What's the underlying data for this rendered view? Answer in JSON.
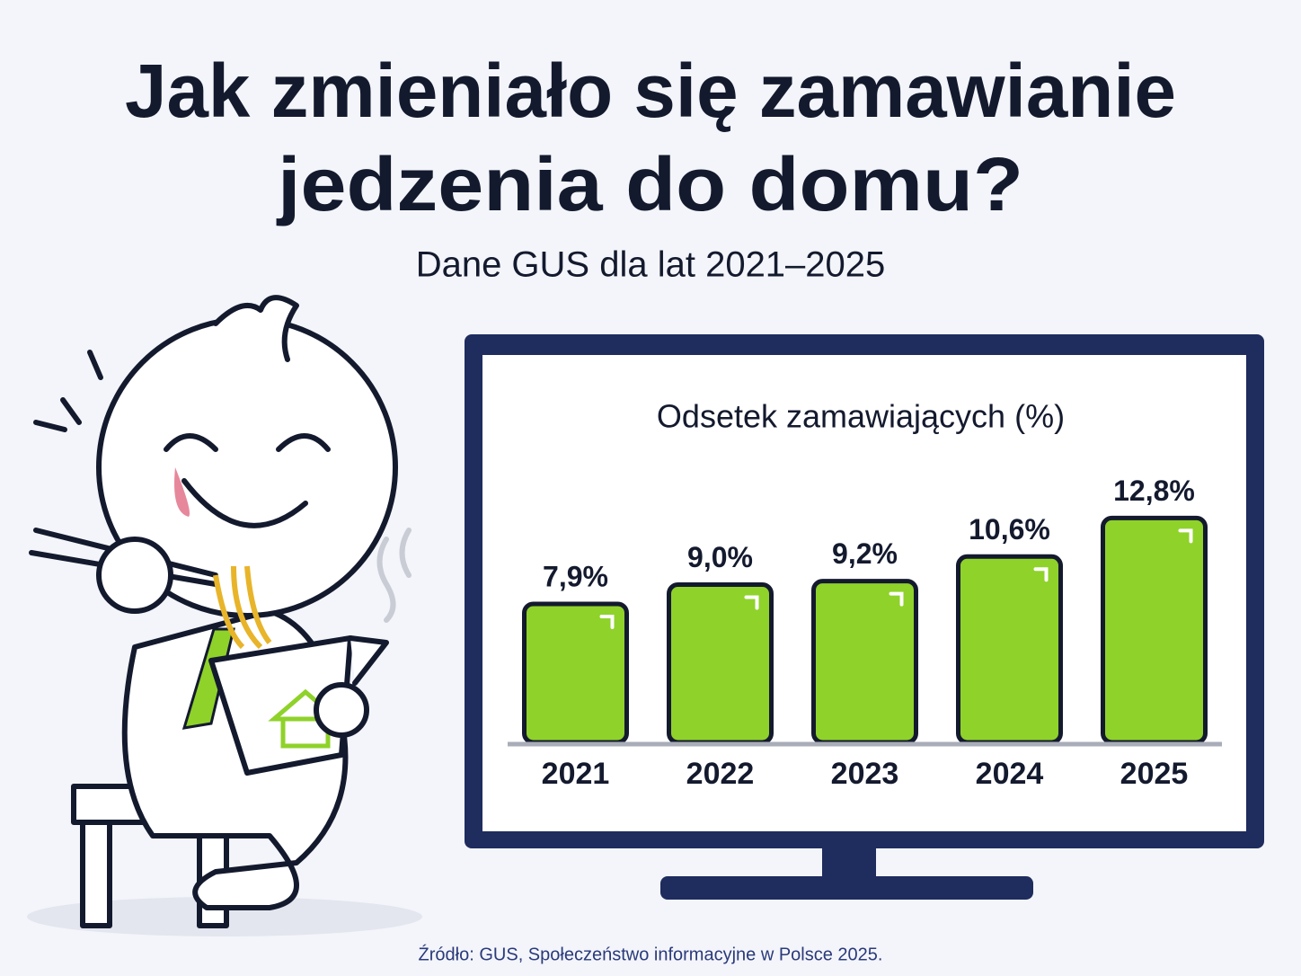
{
  "header": {
    "title": [
      "Jak zmieniało się zamawianie",
      "jedzenia do domu?"
    ],
    "subtitle": "Dane GUS dla lat 2021–2025"
  },
  "chart_data": {
    "type": "bar",
    "title": "Odsetek zamawiających (%)",
    "categories": [
      "2021",
      "2022",
      "2023",
      "2024",
      "2025"
    ],
    "values": [
      7.9,
      9.0,
      9.2,
      10.6,
      12.8
    ],
    "value_labels": [
      "7,9%",
      "9,0%",
      "9,2%",
      "10,6%",
      "12,8%"
    ],
    "color": "#8fd22a"
  },
  "footer": {
    "source": "Źródło: GUS, Społeczeństwo informacyjne w Polsce 2025."
  }
}
